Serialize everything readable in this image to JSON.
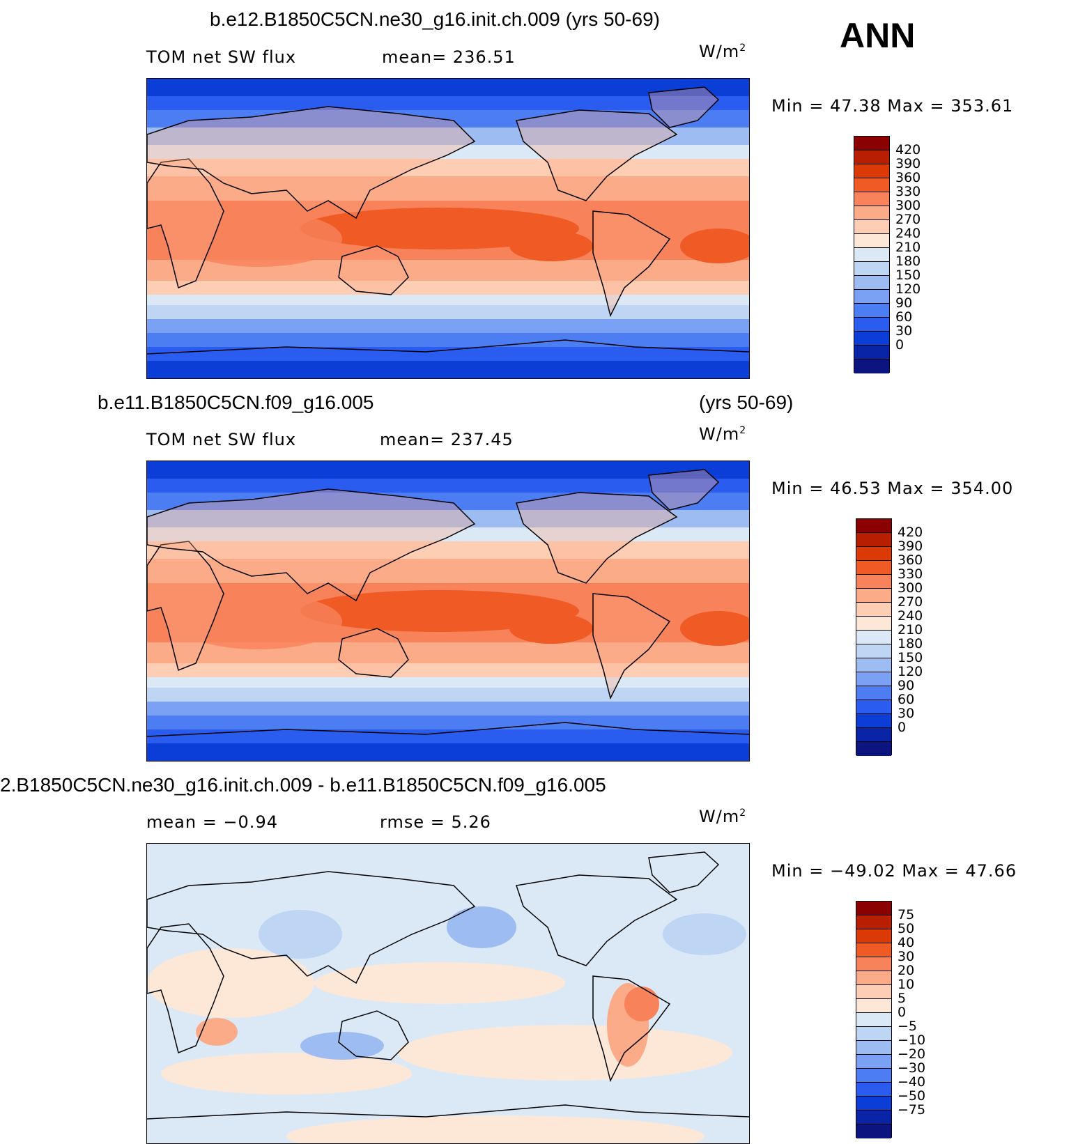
{
  "season": "ANN",
  "units": "W/m",
  "units_sup": "2",
  "panels": [
    {
      "title": "b.e12.B1850C5CN.ne30_g16.init.ch.009 (yrs 50-69)",
      "left_label": "TOM net SW flux",
      "center_label": "mean= 236.51",
      "minmax": "Min =   47.38 Max = 353.61",
      "colorbar_labels": [
        "420",
        "390",
        "360",
        "330",
        "300",
        "270",
        "240",
        "210",
        "180",
        "150",
        "120",
        "90",
        "60",
        "30",
        "0"
      ],
      "colorbar_colors": [
        "#8b0000",
        "#b81e00",
        "#db3a07",
        "#f05a25",
        "#f8825a",
        "#fcab89",
        "#fdcdb4",
        "#fde8d8",
        "#dbe9f7",
        "#bfd5f4",
        "#9cbcf2",
        "#7aa1f3",
        "#4d7df3",
        "#2a5cf0",
        "#0b3ed6",
        "#0a24a8",
        "#0c1480"
      ],
      "chart_data": {
        "type": "heatmap",
        "variable": "TOM net SW flux",
        "mean": 236.51,
        "min": 47.38,
        "max": 353.61,
        "contour_levels": [
          0,
          30,
          60,
          90,
          120,
          150,
          180,
          210,
          240,
          270,
          300,
          330,
          360,
          390,
          420
        ],
        "zonal_profile_hint": "high (~300-340) in tropics, low (~30-90) at poles"
      }
    },
    {
      "title": "b.e11.B1850C5CN.f09_g16.005",
      "title_right": "(yrs 50-69)",
      "left_label": "TOM net SW flux",
      "center_label": "mean= 237.45",
      "minmax": "Min =   46.53 Max = 354.00",
      "colorbar_labels": [
        "420",
        "390",
        "360",
        "330",
        "300",
        "270",
        "240",
        "210",
        "180",
        "150",
        "120",
        "90",
        "60",
        "30",
        "0"
      ],
      "colorbar_colors": [
        "#8b0000",
        "#b81e00",
        "#db3a07",
        "#f05a25",
        "#f8825a",
        "#fcab89",
        "#fdcdb4",
        "#fde8d8",
        "#dbe9f7",
        "#bfd5f4",
        "#9cbcf2",
        "#7aa1f3",
        "#4d7df3",
        "#2a5cf0",
        "#0b3ed6",
        "#0a24a8",
        "#0c1480"
      ],
      "chart_data": {
        "type": "heatmap",
        "variable": "TOM net SW flux",
        "mean": 237.45,
        "min": 46.53,
        "max": 354.0,
        "contour_levels": [
          0,
          30,
          60,
          90,
          120,
          150,
          180,
          210,
          240,
          270,
          300,
          330,
          360,
          390,
          420
        ]
      }
    },
    {
      "title": "2.B1850C5CN.ne30_g16.init.ch.009 - b.e11.B1850C5CN.f09_g16.005",
      "left_label": "mean =   −0.94",
      "center_label": "rmse =    5.26",
      "minmax": "Min = −49.02 Max =   47.66",
      "colorbar_labels": [
        "75",
        "50",
        "40",
        "30",
        "20",
        "10",
        "5",
        "0",
        "−5",
        "−10",
        "−20",
        "−30",
        "−40",
        "−50",
        "−75"
      ],
      "colorbar_colors": [
        "#8b0000",
        "#b81e00",
        "#db3a07",
        "#f05a25",
        "#f8825a",
        "#fcab89",
        "#fdcdb4",
        "#fde8d8",
        "#dbe9f7",
        "#bfd5f4",
        "#9cbcf2",
        "#7aa1f3",
        "#4d7df3",
        "#2a5cf0",
        "#0b3ed6",
        "#0a24a8",
        "#0c1480"
      ],
      "chart_data": {
        "type": "heatmap",
        "variable": "difference TOM net SW flux",
        "mean": -0.94,
        "rmse": 5.26,
        "min": -49.02,
        "max": 47.66,
        "contour_levels": [
          -75,
          -50,
          -40,
          -30,
          -20,
          -10,
          -5,
          0,
          5,
          10,
          20,
          30,
          40,
          50,
          75
        ]
      }
    }
  ]
}
